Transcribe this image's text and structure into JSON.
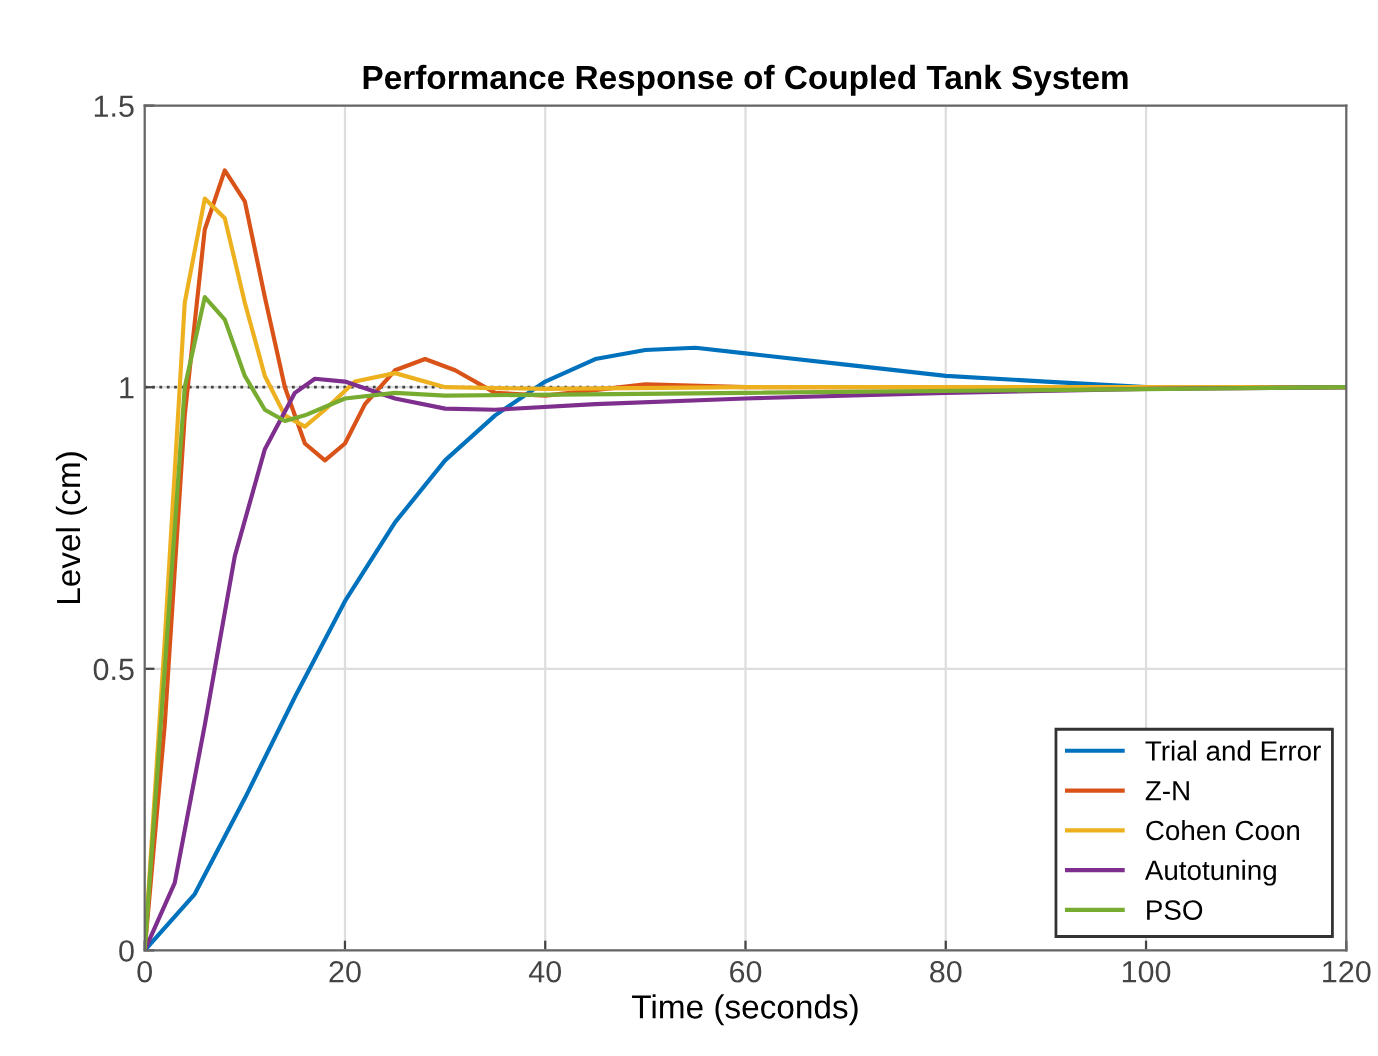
{
  "chart_data": {
    "type": "line",
    "title": "Performance Response of Coupled Tank System",
    "xlabel": "Time (seconds)",
    "ylabel": "Level (cm)",
    "xlim": [
      0,
      120
    ],
    "ylim": [
      0,
      1.5
    ],
    "xticks": [
      0,
      20,
      40,
      60,
      80,
      100,
      120
    ],
    "yticks": [
      0,
      0.5,
      1,
      1.5
    ],
    "grid": true,
    "legend": "bottom right",
    "ref_lines": [
      {
        "axis": "y",
        "value": 1,
        "label": null,
        "color": "#444444",
        "line_style": "dotted"
      }
    ],
    "series": [
      {
        "name": "Trial and Error",
        "color": "#0072bd",
        "x": [
          0,
          5,
          10,
          15,
          20,
          25,
          30,
          35,
          40,
          45,
          50,
          55,
          60,
          70,
          80,
          90,
          100,
          110,
          120
        ],
        "values": [
          0,
          0.1,
          0.27,
          0.45,
          0.62,
          0.76,
          0.87,
          0.95,
          1.01,
          1.05,
          1.066,
          1.07,
          1.06,
          1.04,
          1.02,
          1.01,
          1.0,
          1.0,
          1.0
        ]
      },
      {
        "name": "Z-N",
        "color": "#d95319",
        "x": [
          0,
          2,
          4,
          6,
          8,
          10,
          12,
          14,
          16,
          18,
          20,
          22,
          25,
          28,
          31,
          35,
          40,
          50,
          60,
          120
        ],
        "values": [
          0,
          0.4,
          0.95,
          1.28,
          1.385,
          1.33,
          1.16,
          1.0,
          0.9,
          0.87,
          0.9,
          0.97,
          1.03,
          1.05,
          1.03,
          0.99,
          0.985,
          1.005,
          1.0,
          1.0
        ]
      },
      {
        "name": "Cohen Coon",
        "color": "#edb120",
        "x": [
          0,
          2,
          4,
          6,
          8,
          10,
          12,
          14,
          16,
          18,
          21,
          25,
          30,
          40,
          60,
          120
        ],
        "values": [
          0,
          0.55,
          1.15,
          1.335,
          1.3,
          1.15,
          1.02,
          0.95,
          0.93,
          0.96,
          1.01,
          1.025,
          1.0,
          0.997,
          1.0,
          1.0
        ]
      },
      {
        "name": "Autotuning",
        "color": "#7e2f8e",
        "x": [
          0,
          3,
          6,
          9,
          12,
          15,
          17,
          20,
          25,
          30,
          35,
          45,
          60,
          80,
          100,
          120
        ],
        "values": [
          0,
          0.12,
          0.4,
          0.7,
          0.89,
          0.99,
          1.015,
          1.01,
          0.98,
          0.962,
          0.96,
          0.97,
          0.98,
          0.99,
          0.997,
          1.0
        ]
      },
      {
        "name": "PSO",
        "color": "#77ac30",
        "x": [
          0,
          2,
          4,
          6,
          8,
          10,
          12,
          14,
          16,
          20,
          25,
          30,
          60,
          120
        ],
        "values": [
          0,
          0.5,
          1.0,
          1.16,
          1.12,
          1.02,
          0.96,
          0.94,
          0.95,
          0.98,
          0.99,
          0.985,
          0.99,
          1.0
        ]
      }
    ]
  }
}
